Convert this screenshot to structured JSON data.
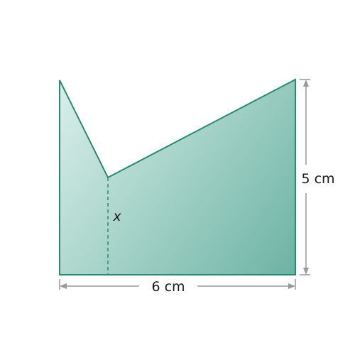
{
  "diagram": {
    "labels": {
      "width": "6 cm",
      "height": "5 cm",
      "variable": "x"
    },
    "colors": {
      "fill_light": "#d4ece6",
      "fill_dark": "#6cb3a4",
      "outline": "#2a8a72",
      "dashed": "#2a8a72",
      "dimension_line": "#999999"
    }
  }
}
